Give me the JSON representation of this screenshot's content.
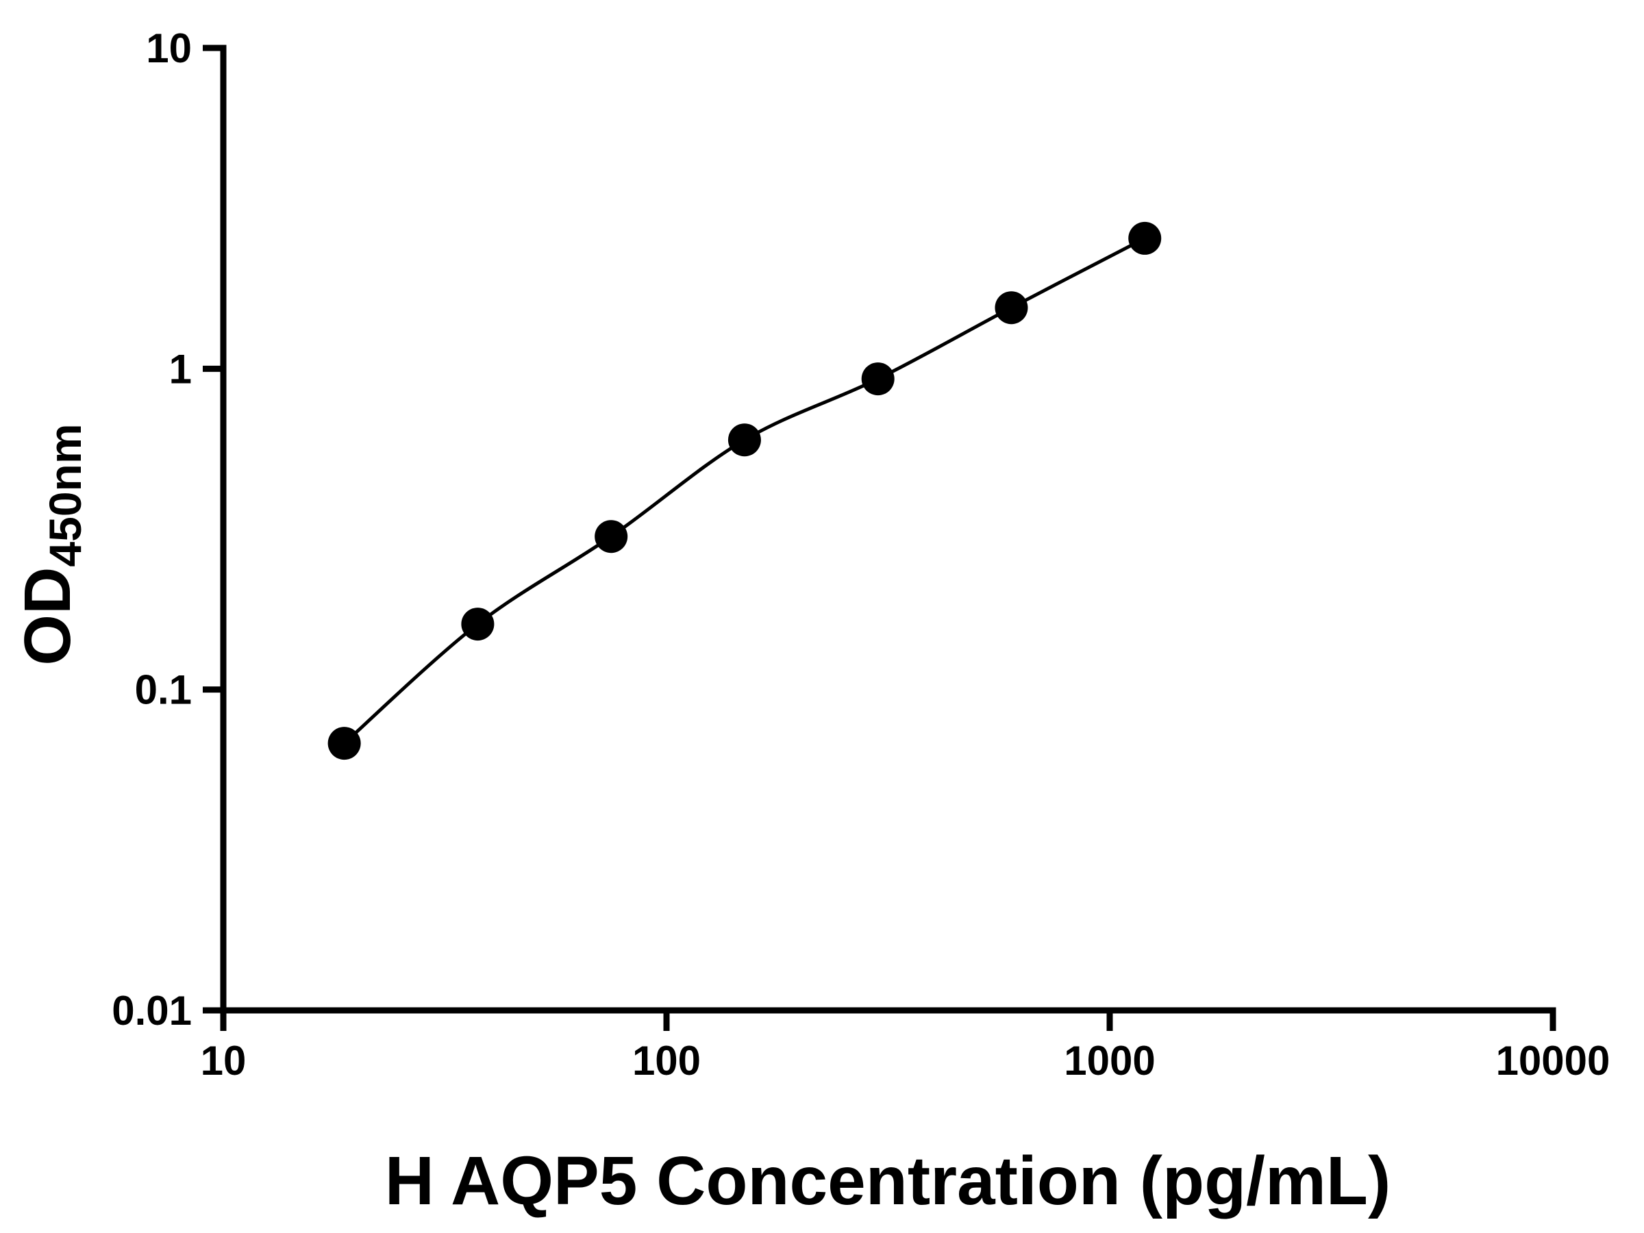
{
  "chart_data": {
    "type": "scatter",
    "title": "",
    "xlabel": "H AQP5 Concentration (pg/mL)",
    "ylabel_main": "OD",
    "ylabel_sub": "450nm",
    "x_scale": "log10",
    "y_scale": "log10",
    "xlim": [
      10,
      10000
    ],
    "ylim": [
      0.01,
      10
    ],
    "grid": false,
    "legend": false,
    "x_ticks": [
      {
        "value": 10,
        "label": "10"
      },
      {
        "value": 100,
        "label": "100"
      },
      {
        "value": 1000,
        "label": "1000"
      },
      {
        "value": 10000,
        "label": "10000"
      }
    ],
    "y_ticks": [
      {
        "value": 0.01,
        "label": "0.01"
      },
      {
        "value": 0.1,
        "label": "0.1"
      },
      {
        "value": 1,
        "label": "1"
      },
      {
        "value": 10,
        "label": "10"
      }
    ],
    "series": [
      {
        "x": [
          18.75,
          37.5,
          75,
          150,
          300,
          600,
          1200
        ],
        "y": [
          0.068,
          0.16,
          0.3,
          0.6,
          0.93,
          1.55,
          2.55
        ],
        "marker": "filled-circle",
        "line": "smooth",
        "color": "#000000"
      }
    ],
    "colors": {
      "axis": "#000000",
      "background": "#ffffff",
      "points": "#000000",
      "curve": "#000000"
    }
  }
}
